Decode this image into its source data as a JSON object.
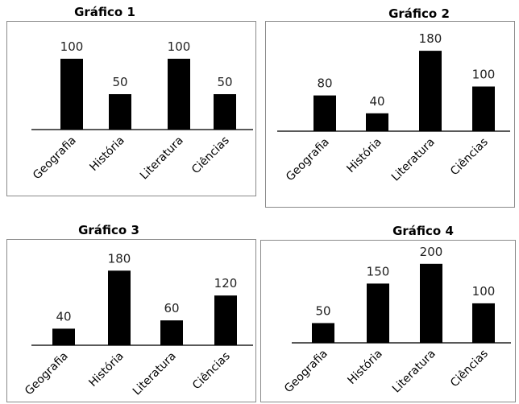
{
  "chart_data": [
    {
      "type": "bar",
      "title": "Gráfico 1",
      "categories": [
        "Geografia",
        "História",
        "Literatura",
        "Ciências"
      ],
      "values": [
        100,
        50,
        100,
        50
      ],
      "data_labels": [
        "100",
        "50",
        "100",
        "50"
      ],
      "xlabel": "",
      "ylabel": "",
      "ylim": [
        0,
        200
      ],
      "bar_color": "#000000",
      "grid": false,
      "legend": "none"
    },
    {
      "type": "bar",
      "title": "Gráfico 2",
      "categories": [
        "Geografia",
        "História",
        "Literatura",
        "Ciências"
      ],
      "values": [
        80,
        40,
        180,
        100
      ],
      "data_labels": [
        "80",
        "40",
        "180",
        "100"
      ],
      "xlabel": "",
      "ylabel": "",
      "ylim": [
        0,
        200
      ],
      "bar_color": "#000000",
      "grid": false,
      "legend": "none"
    },
    {
      "type": "bar",
      "title": "Gráfico 3",
      "categories": [
        "Geografia",
        "História",
        "Literatura",
        "Ciências"
      ],
      "values": [
        40,
        180,
        60,
        120
      ],
      "data_labels": [
        "40",
        "180",
        "60",
        "120"
      ],
      "xlabel": "",
      "ylabel": "",
      "ylim": [
        0,
        200
      ],
      "bar_color": "#000000",
      "grid": false,
      "legend": "none"
    },
    {
      "type": "bar",
      "title": "Gráfico 4",
      "categories": [
        "Geografia",
        "História",
        "Literatura",
        "Ciências"
      ],
      "values": [
        50,
        150,
        200,
        100
      ],
      "data_labels": [
        "50",
        "150",
        "200",
        "100"
      ],
      "xlabel": "",
      "ylabel": "",
      "ylim": [
        0,
        220
      ],
      "bar_color": "#000000",
      "grid": false,
      "legend": "none"
    }
  ]
}
